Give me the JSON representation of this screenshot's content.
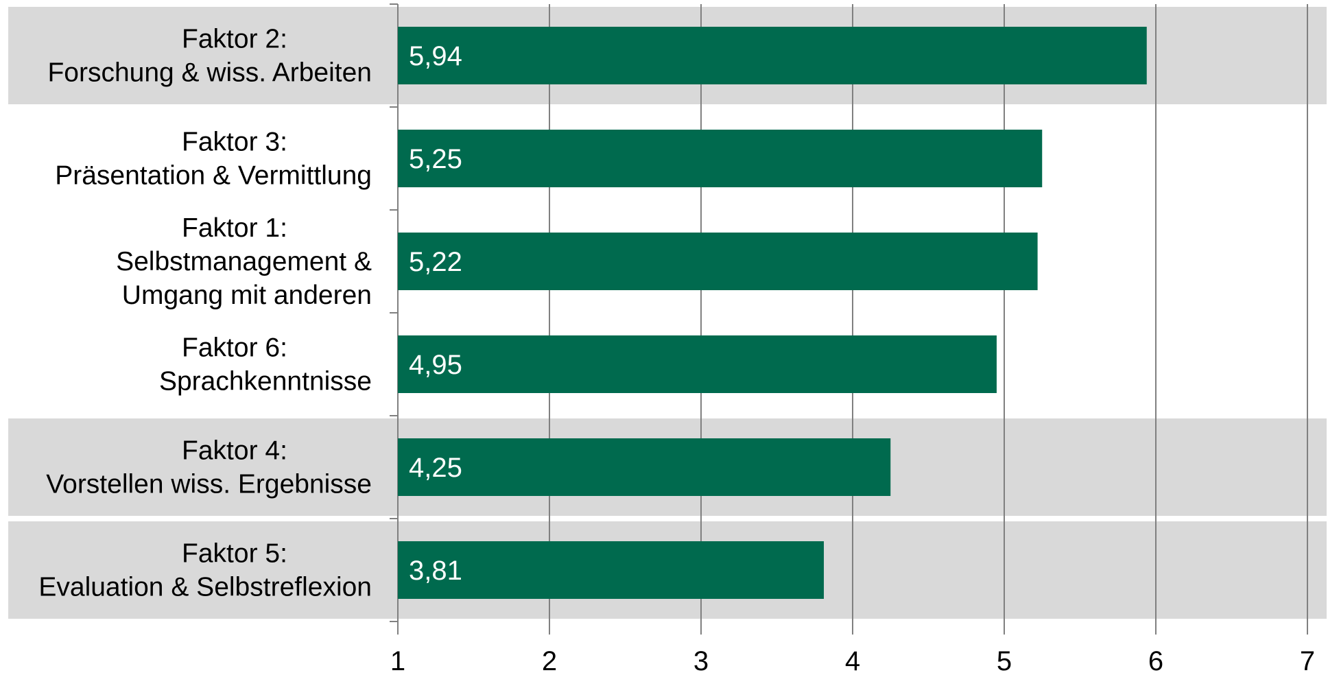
{
  "chart_data": {
    "type": "bar",
    "orientation": "horizontal",
    "categories": [
      [
        "Faktor 2:",
        "Forschung & wiss. Arbeiten"
      ],
      [
        "Faktor 3:",
        "Präsentation & Vermittlung"
      ],
      [
        "Faktor 1:",
        "Selbstmanagement &",
        "Umgang mit anderen"
      ],
      [
        "Faktor 6:",
        "Sprachkenntnisse"
      ],
      [
        "Faktor 4:",
        "Vorstellen wiss. Ergebnisse"
      ],
      [
        "Faktor 5:",
        "Evaluation & Selbstreflexion"
      ]
    ],
    "values": [
      5.94,
      5.25,
      5.22,
      4.95,
      4.25,
      3.81
    ],
    "value_labels": [
      "5,94",
      "5,25",
      "5,22",
      "4,95",
      "4,25",
      "3,81"
    ],
    "row_highlight": [
      true,
      false,
      false,
      false,
      true,
      true
    ],
    "xlim": [
      1,
      7
    ],
    "xticks": [
      1,
      2,
      3,
      4,
      5,
      6,
      7
    ],
    "xtick_labels": [
      "1",
      "2",
      "3",
      "4",
      "5",
      "6",
      "7"
    ],
    "grid": true,
    "legend": "none",
    "bar_color": "#006A4E",
    "highlight_color": "#D9D9D9",
    "grid_color": "#808080"
  }
}
